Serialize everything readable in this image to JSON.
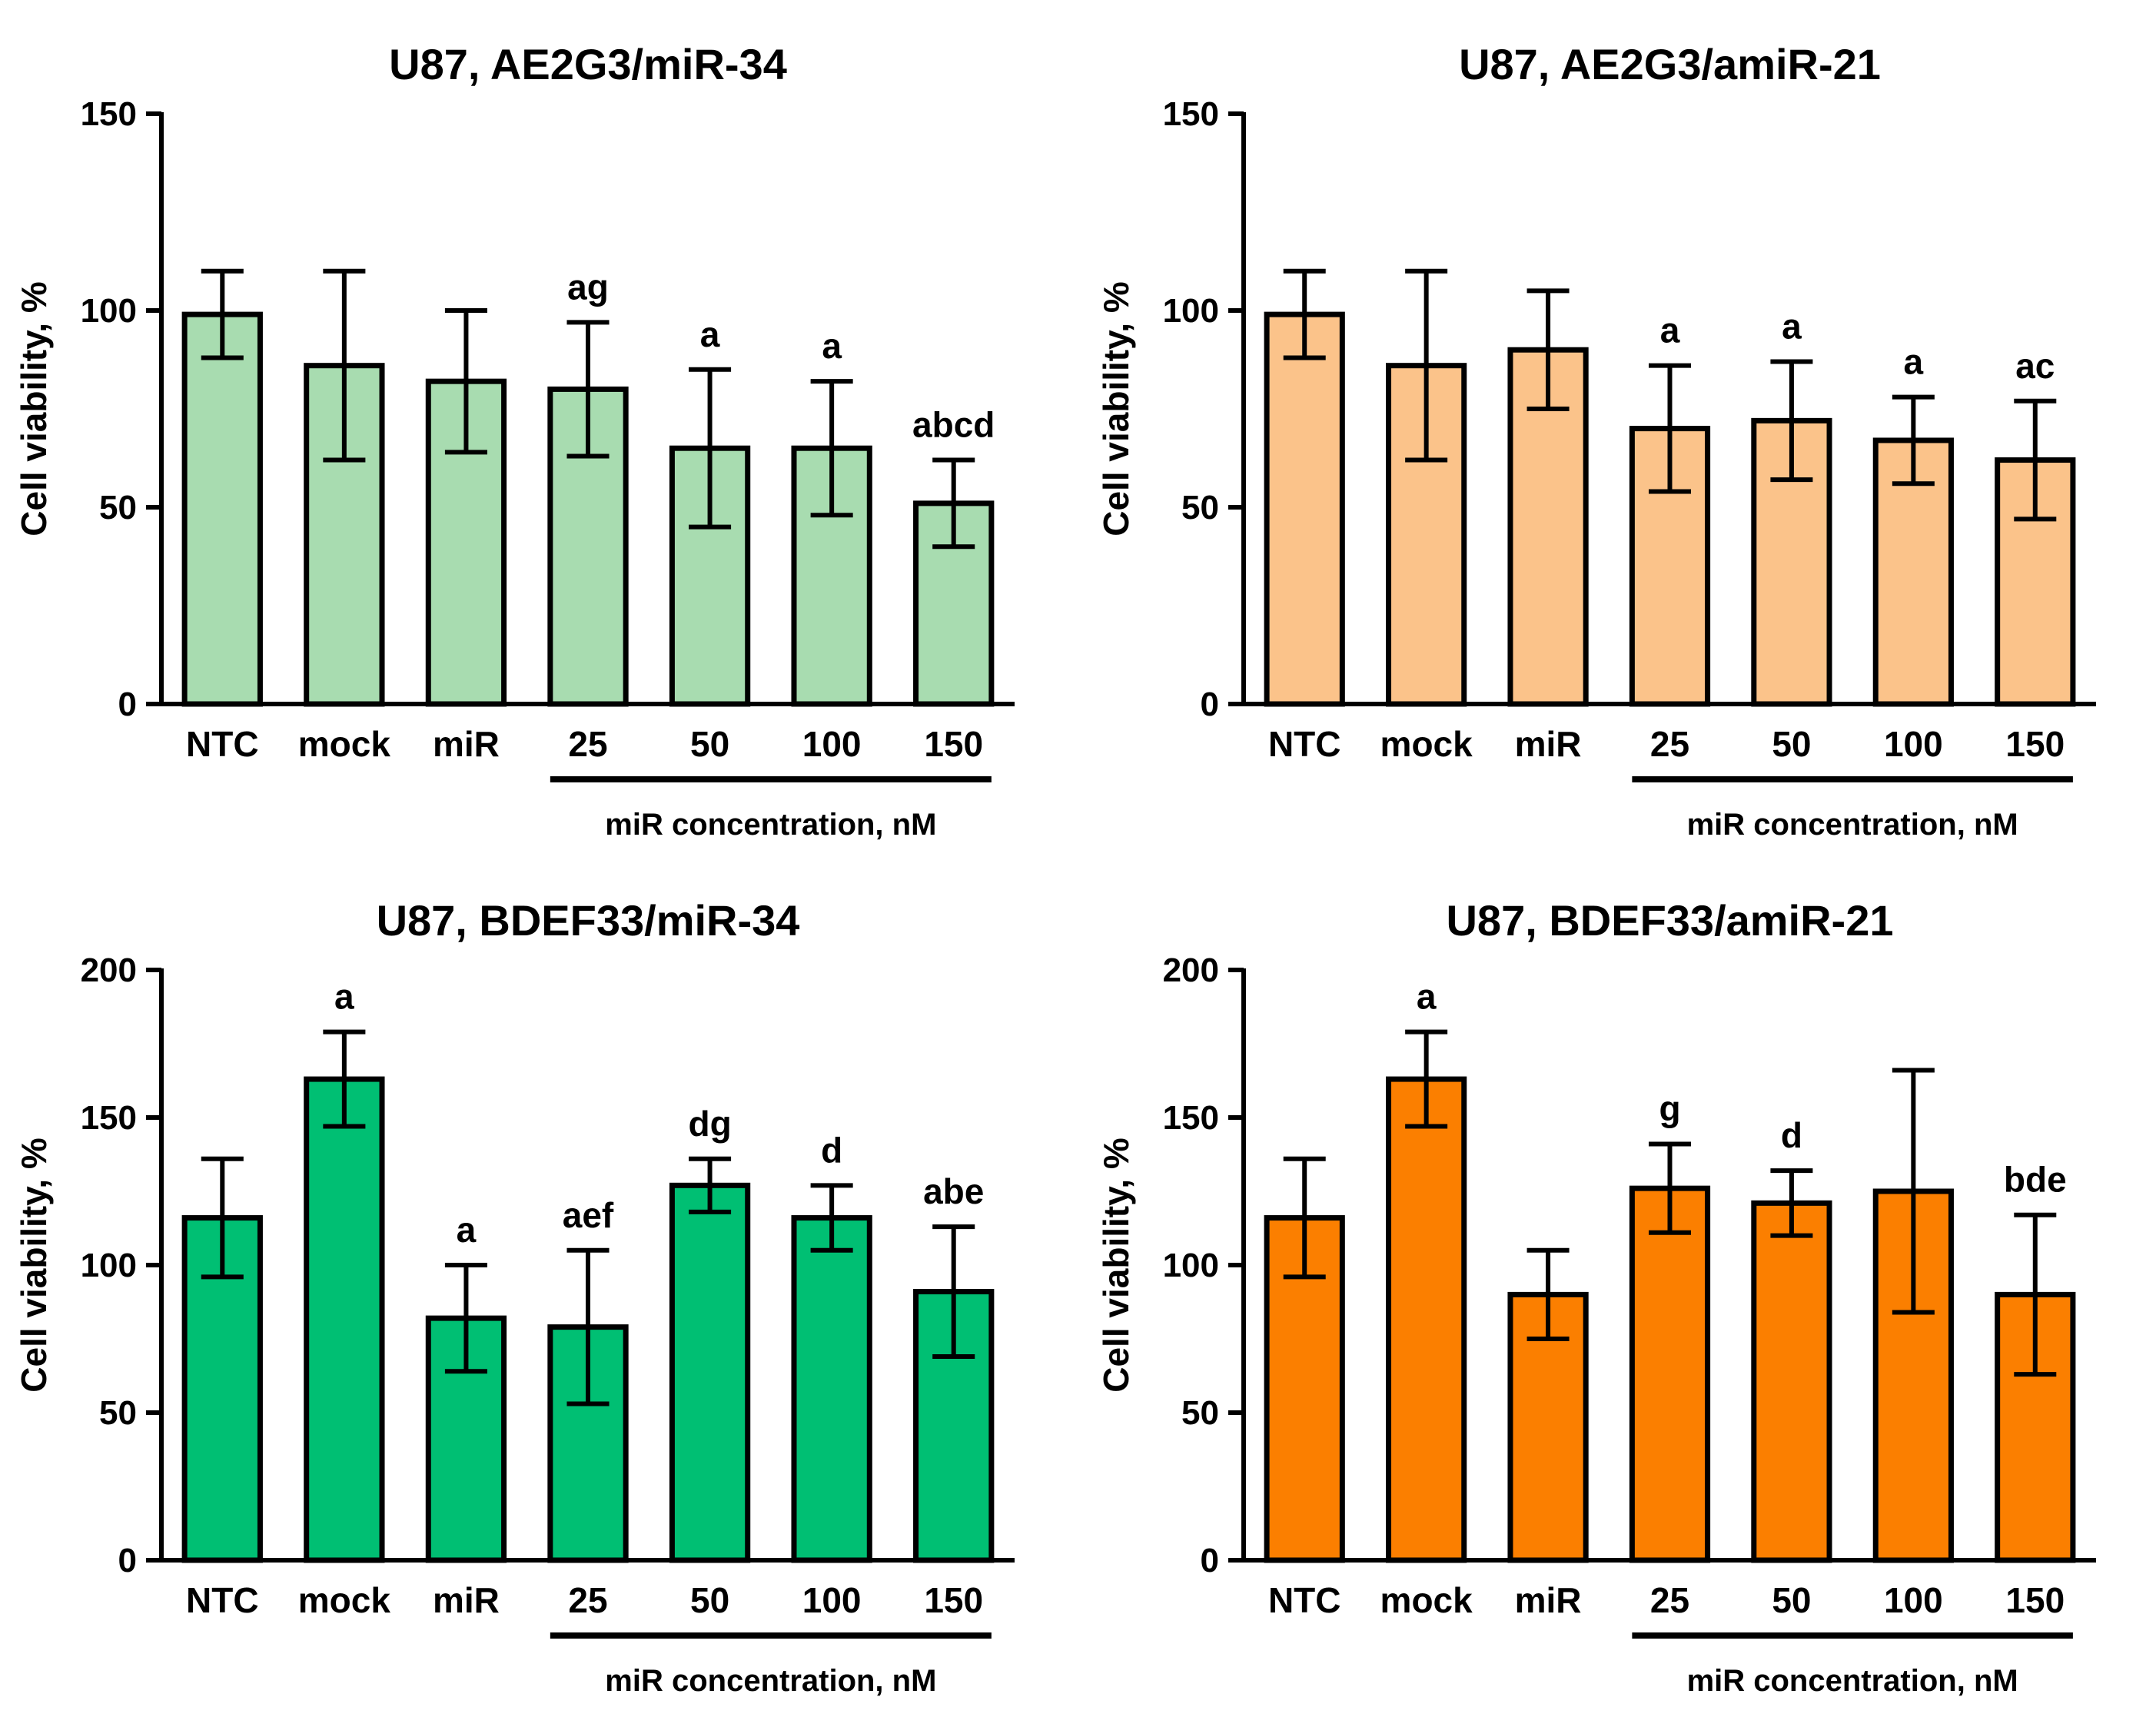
{
  "chart_data": [
    {
      "type": "bar",
      "title": "U87, AE2G3/miR-34",
      "xlabel": "",
      "ylabel": "Cell viability, %",
      "ylim": [
        0,
        150
      ],
      "yticks": [
        0,
        50,
        100,
        150
      ],
      "categories": [
        "NTC",
        "mock",
        "miR",
        "25",
        "50",
        "100",
        "150"
      ],
      "values": [
        99,
        86,
        82,
        80,
        65,
        65,
        51
      ],
      "errors": [
        11,
        24,
        18,
        17,
        20,
        17,
        11
      ],
      "significance": [
        "",
        "",
        "",
        "ag",
        "a",
        "a",
        "abcd"
      ],
      "bracket_label": "miR concentration, nM",
      "bar_color": "#a8dcb0"
    },
    {
      "type": "bar",
      "title": "U87, AE2G3/amiR-21",
      "xlabel": "",
      "ylabel": "Cell viability, %",
      "ylim": [
        0,
        150
      ],
      "yticks": [
        0,
        50,
        100,
        150
      ],
      "categories": [
        "NTC",
        "mock",
        "miR",
        "25",
        "50",
        "100",
        "150"
      ],
      "values": [
        99,
        86,
        90,
        70,
        72,
        67,
        62
      ],
      "errors": [
        11,
        24,
        15,
        16,
        15,
        11,
        15
      ],
      "significance": [
        "",
        "",
        "",
        "a",
        "a",
        "a",
        "ac"
      ],
      "bracket_label": "miR concentration, nM",
      "bar_color": "#fbc38a"
    },
    {
      "type": "bar",
      "title": "U87, BDEF33/miR-34",
      "xlabel": "",
      "ylabel": "Cell viability, %",
      "ylim": [
        0,
        200
      ],
      "yticks": [
        0,
        50,
        100,
        150,
        200
      ],
      "categories": [
        "NTC",
        "mock",
        "miR",
        "25",
        "50",
        "100",
        "150"
      ],
      "values": [
        116,
        163,
        82,
        79,
        127,
        116,
        91
      ],
      "errors": [
        20,
        16,
        18,
        26,
        9,
        11,
        22
      ],
      "significance": [
        "",
        "a",
        "a",
        "aef",
        "dg",
        "d",
        "abe"
      ],
      "bracket_label": "miR concentration, nM",
      "bar_color": "#00bf73"
    },
    {
      "type": "bar",
      "title": "U87, BDEF33/amiR-21",
      "xlabel": "",
      "ylabel": "Cell viability, %",
      "ylim": [
        0,
        200
      ],
      "yticks": [
        0,
        50,
        100,
        150,
        200
      ],
      "categories": [
        "NTC",
        "mock",
        "miR",
        "25",
        "50",
        "100",
        "150"
      ],
      "values": [
        116,
        163,
        90,
        126,
        121,
        125,
        90
      ],
      "errors": [
        20,
        16,
        15,
        15,
        11,
        41,
        27
      ],
      "significance": [
        "",
        "a",
        "",
        "g",
        "d",
        "",
        "bde"
      ],
      "bracket_label": "miR concentration, nM",
      "bar_color": "#fb7f00"
    }
  ]
}
